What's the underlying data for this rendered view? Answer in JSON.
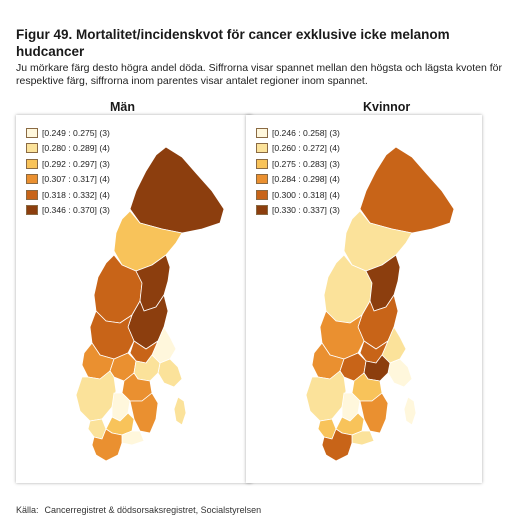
{
  "title": "Figur 49. Mortalitet/incidenskvot för cancer exklusive icke melanom hudcancer",
  "subtitle": "Ju mörkare färg desto högra andel döda. Siffrorna visar spannet mellan den högsta och lägsta kvoten för respektive färg, siffrorna inom parentes visar antalet regioner inom spannet.",
  "panels": {
    "men": {
      "heading": "Män",
      "legend": [
        {
          "label": "[0.249 : 0.275] (3)",
          "color": "#fff7dc"
        },
        {
          "label": "[0.280 : 0.289] (4)",
          "color": "#fbe29a"
        },
        {
          "label": "[0.292 : 0.297] (3)",
          "color": "#f8c35a"
        },
        {
          "label": "[0.307 : 0.317] (4)",
          "color": "#ea9030"
        },
        {
          "label": "[0.318 : 0.332] (4)",
          "color": "#c86418"
        },
        {
          "label": "[0.346 : 0.370] (3)",
          "color": "#8c3e0e"
        }
      ]
    },
    "women": {
      "heading": "Kvinnor",
      "legend": [
        {
          "label": "[0.246 : 0.258] (3)",
          "color": "#fff7dc"
        },
        {
          "label": "[0.260 : 0.272] (4)",
          "color": "#fbe29a"
        },
        {
          "label": "[0.275 : 0.283] (3)",
          "color": "#f8c35a"
        },
        {
          "label": "[0.284 : 0.298] (4)",
          "color": "#ea9030"
        },
        {
          "label": "[0.300 : 0.318] (4)",
          "color": "#c86418"
        },
        {
          "label": "[0.330 : 0.337] (3)",
          "color": "#8c3e0e"
        }
      ]
    }
  },
  "source": {
    "label": "Källa:",
    "text": "Cancerregistret & dödsorsaksregistret, Socialstyrelsen"
  }
}
